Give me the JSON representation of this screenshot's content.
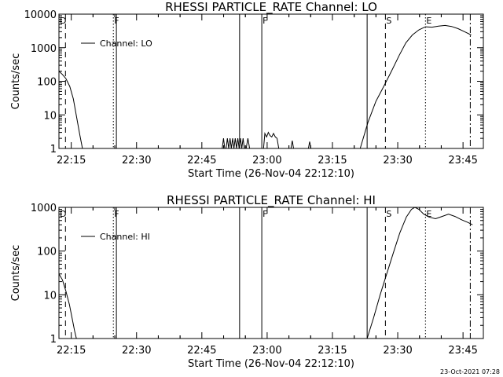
{
  "footer": {
    "timestamp": "23-Oct-2021 07:28"
  },
  "chart_data": [
    {
      "type": "line",
      "title": "RHESSI PARTICLE_RATE Channel: LO",
      "xlabel": "Start Time (26-Nov-04 22:12:10)",
      "ylabel": "Counts/sec",
      "yscale": "log",
      "x_units": "minutes after 22:12:10",
      "xlim": [
        0,
        97.5
      ],
      "ylim": [
        1,
        10000
      ],
      "xticks": [
        {
          "x": 2.83,
          "label": "22:15"
        },
        {
          "x": 17.83,
          "label": "22:30"
        },
        {
          "x": 32.83,
          "label": "22:45"
        },
        {
          "x": 47.83,
          "label": "23:00"
        },
        {
          "x": 62.83,
          "label": "23:15"
        },
        {
          "x": 77.83,
          "label": "23:30"
        },
        {
          "x": 92.83,
          "label": "23:45"
        }
      ],
      "yticks": [
        {
          "y": 1,
          "label": "1"
        },
        {
          "y": 10,
          "label": "10"
        },
        {
          "y": 100,
          "label": "100"
        },
        {
          "y": 1000,
          "label": "1000"
        },
        {
          "y": 10000,
          "label": "10000"
        }
      ],
      "legend": {
        "label": "Channel: LO",
        "position": "top-left"
      },
      "series": [
        {
          "name": "Channel: LO",
          "segments": [
            [
              [
                0.0,
                200
              ],
              [
                0.8,
                160
              ],
              [
                1.6,
                120
              ],
              [
                2.5,
                70
              ],
              [
                3.3,
                30
              ],
              [
                4.1,
                8
              ],
              [
                4.8,
                2.5
              ],
              [
                5.4,
                1
              ]
            ],
            [
              [
                37.5,
                1
              ],
              [
                37.8,
                2
              ],
              [
                38.1,
                1
              ]
            ],
            [
              [
                38.4,
                1
              ],
              [
                38.7,
                2
              ],
              [
                39.0,
                1
              ],
              [
                39.3,
                2
              ],
              [
                39.6,
                1
              ],
              [
                39.9,
                2
              ],
              [
                40.2,
                1
              ],
              [
                40.5,
                2
              ],
              [
                40.8,
                1
              ],
              [
                41.1,
                2
              ],
              [
                41.4,
                1
              ],
              [
                41.7,
                2
              ],
              [
                42.0,
                1
              ],
              [
                42.3,
                2
              ],
              [
                42.6,
                1
              ]
            ],
            [
              [
                43.0,
                1
              ],
              [
                43.4,
                2
              ],
              [
                43.8,
                1
              ]
            ],
            [
              [
                47.0,
                1
              ],
              [
                47.3,
                2.8
              ],
              [
                47.7,
                2.2
              ],
              [
                48.1,
                3
              ],
              [
                48.5,
                2.4
              ],
              [
                48.9,
                2.2
              ],
              [
                49.3,
                2.8
              ],
              [
                49.7,
                2.2
              ],
              [
                50.1,
                2
              ],
              [
                50.5,
                1
              ]
            ],
            [
              [
                53.3,
                1
              ],
              [
                53.6,
                1.7
              ],
              [
                53.9,
                1
              ]
            ],
            [
              [
                57.3,
                1
              ],
              [
                57.6,
                1.6
              ],
              [
                57.9,
                1
              ]
            ],
            [
              [
                69.2,
                1
              ],
              [
                71.0,
                6
              ],
              [
                72.8,
                25
              ],
              [
                74.6,
                70
              ],
              [
                76.4,
                200
              ],
              [
                78.2,
                600
              ],
              [
                79.7,
                1400
              ],
              [
                81.2,
                2400
              ],
              [
                82.7,
                3400
              ],
              [
                84.2,
                4200
              ],
              [
                85.7,
                4100
              ],
              [
                87.2,
                4400
              ],
              [
                88.7,
                4600
              ],
              [
                90.2,
                4300
              ],
              [
                91.7,
                3700
              ],
              [
                93.2,
                3000
              ],
              [
                94.7,
                2400
              ]
            ]
          ]
        }
      ],
      "markers": [
        {
          "label": "D",
          "x": 0.0,
          "style": "label-only"
        },
        {
          "label": "",
          "x": 1.5,
          "style": "dashed"
        },
        {
          "label": "F",
          "x": 12.5,
          "style": "dotted"
        },
        {
          "label": "",
          "x": 13.2,
          "style": "solid"
        },
        {
          "label": "",
          "x": 41.5,
          "style": "solid"
        },
        {
          "label": "F",
          "x": 46.6,
          "style": "solid"
        },
        {
          "label": "",
          "x": 70.8,
          "style": "solid"
        },
        {
          "label": "S",
          "x": 75.0,
          "style": "dashed"
        },
        {
          "label": "E",
          "x": 84.2,
          "style": "dotted"
        },
        {
          "label": "",
          "x": 94.5,
          "style": "dash-dot"
        }
      ]
    },
    {
      "type": "line",
      "title": "RHESSI PARTICLE_RATE Channel: HI",
      "xlabel": "Start Time (26-Nov-04 22:12:10)",
      "ylabel": "Counts/sec",
      "yscale": "log",
      "x_units": "minutes after 22:12:10",
      "xlim": [
        0,
        97.5
      ],
      "ylim": [
        1,
        1000
      ],
      "xticks": [
        {
          "x": 2.83,
          "label": "22:15"
        },
        {
          "x": 17.83,
          "label": "22:30"
        },
        {
          "x": 32.83,
          "label": "22:45"
        },
        {
          "x": 47.83,
          "label": "23:00"
        },
        {
          "x": 62.83,
          "label": "23:15"
        },
        {
          "x": 77.83,
          "label": "23:30"
        },
        {
          "x": 92.83,
          "label": "23:45"
        }
      ],
      "yticks": [
        {
          "y": 1,
          "label": "1"
        },
        {
          "y": 10,
          "label": "10"
        },
        {
          "y": 100,
          "label": "100"
        },
        {
          "y": 1000,
          "label": "1000"
        }
      ],
      "legend": {
        "label": "Channel: HI",
        "position": "top-left"
      },
      "series": [
        {
          "name": "Channel: HI",
          "segments": [
            [
              [
                0.0,
                30
              ],
              [
                0.8,
                22
              ],
              [
                1.6,
                12
              ],
              [
                2.4,
                6
              ],
              [
                3.0,
                3
              ],
              [
                3.6,
                1.5
              ],
              [
                4.0,
                1
              ]
            ],
            [
              [
                70.8,
                1
              ],
              [
                72.3,
                3
              ],
              [
                73.8,
                10
              ],
              [
                75.3,
                30
              ],
              [
                76.8,
                90
              ],
              [
                78.3,
                260
              ],
              [
                79.8,
                600
              ],
              [
                81.0,
                900
              ],
              [
                81.8,
                1000
              ],
              [
                82.7,
                900
              ],
              [
                83.8,
                700
              ],
              [
                85.0,
                600
              ],
              [
                86.5,
                550
              ],
              [
                88.0,
                620
              ],
              [
                89.5,
                700
              ],
              [
                91.0,
                620
              ],
              [
                92.5,
                520
              ],
              [
                94.0,
                450
              ],
              [
                95.0,
                400
              ]
            ]
          ]
        }
      ],
      "markers": [
        {
          "label": "D",
          "x": 0.0,
          "style": "label-only"
        },
        {
          "label": "",
          "x": 1.5,
          "style": "dashed"
        },
        {
          "label": "F",
          "x": 12.5,
          "style": "dotted"
        },
        {
          "label": "",
          "x": 13.2,
          "style": "solid"
        },
        {
          "label": "",
          "x": 41.5,
          "style": "solid"
        },
        {
          "label": "F",
          "x": 46.6,
          "style": "solid"
        },
        {
          "label": "",
          "x": 70.8,
          "style": "solid"
        },
        {
          "label": "S",
          "x": 75.0,
          "style": "dashed"
        },
        {
          "label": "E",
          "x": 84.2,
          "style": "dotted"
        },
        {
          "label": "",
          "x": 94.5,
          "style": "dash-dot"
        }
      ]
    }
  ]
}
